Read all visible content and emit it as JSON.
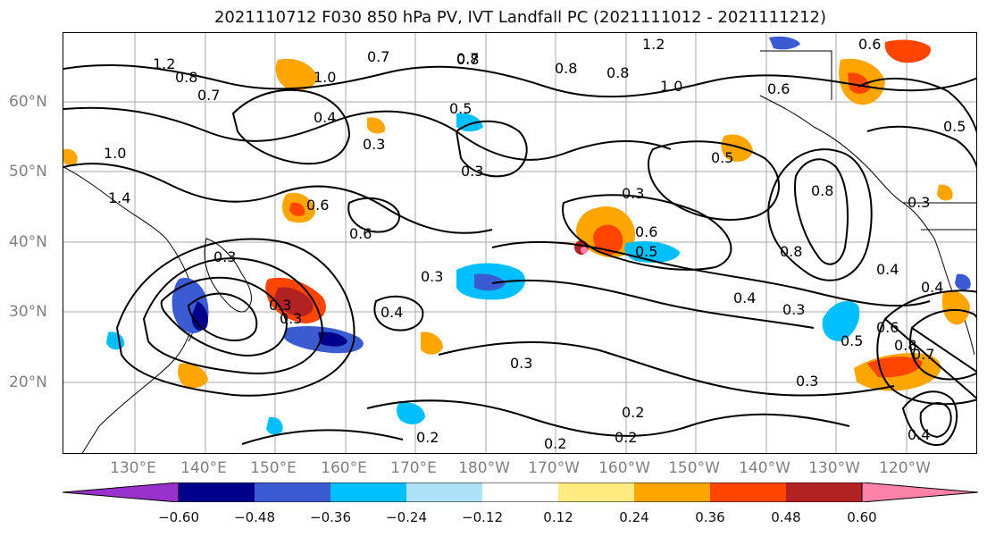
{
  "title": "2021110712 F030 850 hPa PV, IVT Landfall PC (2021111012 - 2021111212)",
  "lat_labels": [
    "60°N",
    "50°N",
    "40°N",
    "30°N",
    "20°N"
  ],
  "lon_labels": [
    "130°E",
    "140°E",
    "150°E",
    "160°E",
    "170°E",
    "180°W",
    "170°W",
    "160°W",
    "150°W",
    "140°W",
    "130°W",
    "120°W"
  ],
  "colorbar": {
    "labels": [
      "−0.60",
      "−0.48",
      "−0.36",
      "−0.24",
      "−0.12",
      "0.12",
      "0.24",
      "0.36",
      "0.48",
      "0.60"
    ],
    "colors": [
      "#9932CC",
      "#00008B",
      "#3A5BD1",
      "#00BFFF",
      "#ADE2F8",
      "#FFFFFF",
      "#FFEB80",
      "#FFA500",
      "#FF4500",
      "#B22222",
      "#FF82AB"
    ]
  },
  "contour_labels": [
    "1.2",
    "1.2",
    "0.8",
    "0.7",
    "0.7",
    "1.0",
    "0.7",
    "0.8",
    "0.8",
    "1.0",
    "0.6",
    "0.6",
    "0.8",
    "0.8",
    "0.5",
    "0.4",
    "0.3",
    "0.3",
    "0.5",
    "0.3",
    "0.6",
    "0.3",
    "0.6",
    "0.5",
    "0.8",
    "0.3",
    "0.4",
    "0.4",
    "0.3",
    "0.3",
    "0.2",
    "0.2",
    "0.2",
    "0.3",
    "0.3",
    "0.5",
    "0.6",
    "0.8",
    "0.7",
    "0.2",
    "0.4",
    "0.3",
    "0.6",
    "1.0",
    "0.5",
    "0.3",
    "0.4",
    "1.4",
    "0.4"
  ]
}
